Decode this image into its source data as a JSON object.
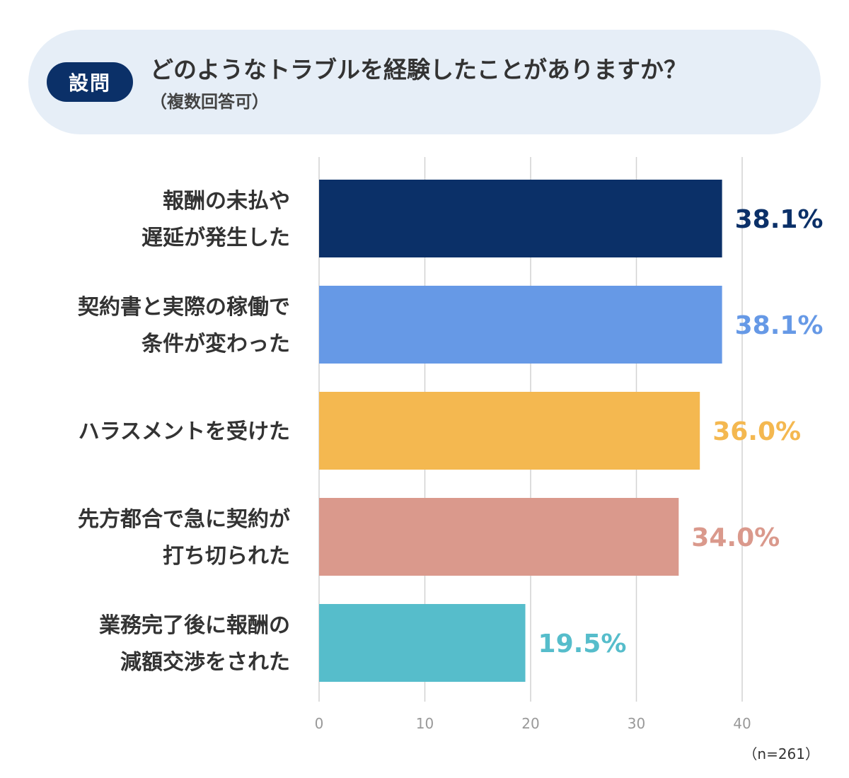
{
  "header": {
    "badge": "設問",
    "question": "どのようなトラブルを経験したことがありますか？",
    "note": "（複数回答可）"
  },
  "chart_data": {
    "type": "bar",
    "orientation": "horizontal",
    "categories": [
      [
        "報酬の未払や",
        "遅延が発生した"
      ],
      [
        "契約書と実際の稼働で",
        "条件が変わった"
      ],
      [
        "ハラスメントを受けた"
      ],
      [
        "先方都合で急に契約が",
        "打ち切られた"
      ],
      [
        "業務完了後に報酬の",
        "減額交渉をされた"
      ]
    ],
    "values": [
      38.1,
      38.1,
      36.0,
      34.0,
      19.5
    ],
    "value_labels": [
      "38.1%",
      "38.1%",
      "36.0%",
      "34.0%",
      "19.5%"
    ],
    "colors": [
      "#0b3068",
      "#6699e6",
      "#f4b850",
      "#da998c",
      "#56bdcb"
    ],
    "xlim": [
      0,
      40
    ],
    "xticks": [
      0,
      10,
      20,
      30,
      40
    ],
    "grid": true
  },
  "sample": "（n=261）"
}
